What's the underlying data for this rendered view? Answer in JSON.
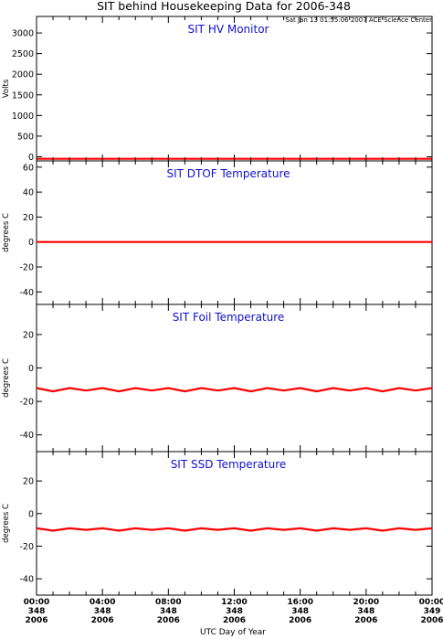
{
  "chart_data": {
    "type": "line",
    "title": "SIT behind Housekeeping Data for 2006-348",
    "timestamp": "Sat Jan 13 01:55:06 2007 ACE Science Center",
    "xlabel": "UTC Day of Year",
    "x_ticks": [
      {
        "time": "00:00",
        "doy": "348",
        "year": "2006"
      },
      {
        "time": "04:00",
        "doy": "348",
        "year": "2006"
      },
      {
        "time": "08:00",
        "doy": "348",
        "year": "2006"
      },
      {
        "time": "12:00",
        "doy": "348",
        "year": "2006"
      },
      {
        "time": "16:00",
        "doy": "348",
        "year": "2006"
      },
      {
        "time": "20:00",
        "doy": "348",
        "year": "2006"
      },
      {
        "time": "00:00",
        "doy": "349",
        "year": "2006"
      }
    ],
    "xlim_hours": [
      0,
      24
    ],
    "series_color": "#ff0000",
    "panels": [
      {
        "title": "SIT HV Monitor",
        "ylabel": "Volts",
        "ylim": [
          -100,
          3400
        ],
        "yticks": [
          0,
          500,
          1000,
          1500,
          2000,
          2500,
          3000
        ],
        "series": {
          "x": [
            0,
            6,
            12,
            18,
            24
          ],
          "y": [
            -50,
            -50,
            -50,
            -50,
            -50
          ]
        }
      },
      {
        "title": "SIT DTOF Temperature",
        "ylabel": "degrees C",
        "ylim": [
          -50,
          65
        ],
        "yticks": [
          -40,
          -20,
          0,
          20,
          40,
          60
        ],
        "series": {
          "x": [
            0,
            3,
            6,
            9,
            12,
            15,
            18,
            21,
            24
          ],
          "y": [
            0,
            0,
            0,
            0,
            0,
            0,
            0,
            0,
            0
          ]
        }
      },
      {
        "title": "SIT Foil Temperature",
        "ylabel": "degrees C",
        "ylim": [
          -50,
          38
        ],
        "yticks": [
          -40,
          -20,
          0,
          20
        ],
        "series": {
          "x": [
            0,
            1,
            2,
            3,
            4,
            5,
            6,
            7,
            8,
            9,
            10,
            11,
            12,
            13,
            14,
            15,
            16,
            17,
            18,
            19,
            20,
            21,
            22,
            23,
            24
          ],
          "y": [
            -12,
            -14,
            -12,
            -13.5,
            -12,
            -14,
            -12,
            -13.5,
            -12,
            -14,
            -12,
            -13.5,
            -12,
            -14,
            -12,
            -13.5,
            -12,
            -14,
            -12,
            -13.5,
            -12,
            -14,
            -12,
            -13.5,
            -12
          ]
        }
      },
      {
        "title": "SIT SSD Temperature",
        "ylabel": "degrees C",
        "ylim": [
          -50,
          38
        ],
        "yticks": [
          -40,
          -20,
          0,
          20
        ],
        "series": {
          "x": [
            0,
            1,
            2,
            3,
            4,
            5,
            6,
            7,
            8,
            9,
            10,
            11,
            12,
            13,
            14,
            15,
            16,
            17,
            18,
            19,
            20,
            21,
            22,
            23,
            24
          ],
          "y": [
            -9,
            -10.5,
            -9,
            -10,
            -9,
            -10.5,
            -9,
            -10,
            -9,
            -10.5,
            -9,
            -10,
            -9,
            -10.5,
            -9,
            -10,
            -9,
            -10.5,
            -9,
            -10,
            -9,
            -10.5,
            -9,
            -10,
            -9
          ]
        }
      }
    ]
  }
}
